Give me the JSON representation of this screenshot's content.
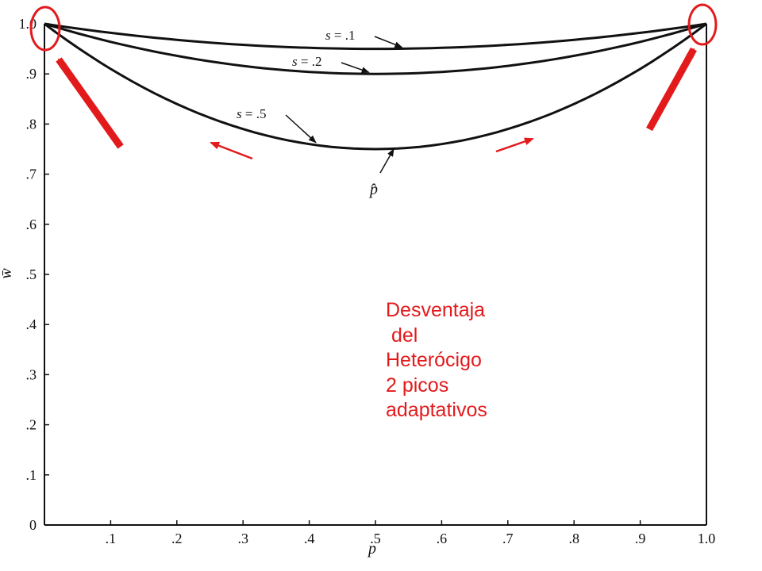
{
  "chart_data": {
    "type": "line",
    "xlabel": "p",
    "ylabel": "w̄",
    "xlim": [
      0,
      1
    ],
    "ylim": [
      0,
      1
    ],
    "x_ticks": [
      {
        "value": 0,
        "label": ""
      },
      {
        "value": 0.1,
        "label": ".1"
      },
      {
        "value": 0.2,
        "label": ".2"
      },
      {
        "value": 0.3,
        "label": ".3"
      },
      {
        "value": 0.4,
        "label": ".4"
      },
      {
        "value": 0.5,
        "label": ".5"
      },
      {
        "value": 0.6,
        "label": ".6"
      },
      {
        "value": 0.7,
        "label": ".7"
      },
      {
        "value": 0.8,
        "label": ".8"
      },
      {
        "value": 0.9,
        "label": ".9"
      },
      {
        "value": 1.0,
        "label": "1.0"
      }
    ],
    "y_ticks": [
      {
        "value": 0,
        "label": "0"
      },
      {
        "value": 0.1,
        "label": ".1"
      },
      {
        "value": 0.2,
        "label": ".2"
      },
      {
        "value": 0.3,
        "label": ".3"
      },
      {
        "value": 0.4,
        "label": ".4"
      },
      {
        "value": 0.5,
        "label": ".5"
      },
      {
        "value": 0.6,
        "label": ".6"
      },
      {
        "value": 0.7,
        "label": ".7"
      },
      {
        "value": 0.8,
        "label": ".8"
      },
      {
        "value": 0.9,
        "label": ".9"
      },
      {
        "value": 1.0,
        "label": "1.0"
      }
    ],
    "x": [
      0,
      0.05,
      0.1,
      0.15,
      0.2,
      0.25,
      0.3,
      0.35,
      0.4,
      0.45,
      0.5,
      0.55,
      0.6,
      0.65,
      0.7,
      0.75,
      0.8,
      0.85,
      0.9,
      0.95,
      1.0
    ],
    "series": [
      {
        "name": "s = .1",
        "s": 0.1,
        "values": [
          1.0,
          0.9905,
          0.982,
          0.9745,
          0.968,
          0.9625,
          0.958,
          0.9545,
          0.952,
          0.9505,
          0.95,
          0.9505,
          0.952,
          0.9545,
          0.958,
          0.9625,
          0.968,
          0.9745,
          0.982,
          0.9905,
          1.0
        ]
      },
      {
        "name": "s = .2",
        "s": 0.2,
        "values": [
          1.0,
          0.981,
          0.964,
          0.949,
          0.936,
          0.925,
          0.916,
          0.909,
          0.904,
          0.901,
          0.9,
          0.901,
          0.904,
          0.909,
          0.916,
          0.925,
          0.936,
          0.949,
          0.964,
          0.981,
          1.0
        ]
      },
      {
        "name": "s = .5",
        "s": 0.5,
        "values": [
          1.0,
          0.9525,
          0.91,
          0.8725,
          0.84,
          0.8125,
          0.79,
          0.7725,
          0.76,
          0.7525,
          0.75,
          0.7525,
          0.76,
          0.7725,
          0.79,
          0.8125,
          0.84,
          0.8725,
          0.91,
          0.9525,
          1.0
        ]
      }
    ],
    "labels": [
      {
        "for": "s = .1",
        "symbol": "s",
        "rest": " = .1",
        "at": [
          0.54,
          0.95
        ]
      },
      {
        "for": "s = .2",
        "symbol": "s",
        "rest": " = .2",
        "at": [
          0.49,
          0.9
        ]
      },
      {
        "for": "s = .5",
        "symbol": "s",
        "rest": " = .5",
        "at": [
          0.41,
          0.76
        ]
      }
    ],
    "equilibrium": {
      "label": "p̂",
      "x": 0.5,
      "y": 0.75
    },
    "annotations": {
      "text": "Desventaja\n del\nHeterócigo\n2 picos\nadaptativos",
      "color": "#e31a1c",
      "peaks": [
        [
          0,
          1
        ],
        [
          1,
          1
        ]
      ]
    }
  }
}
